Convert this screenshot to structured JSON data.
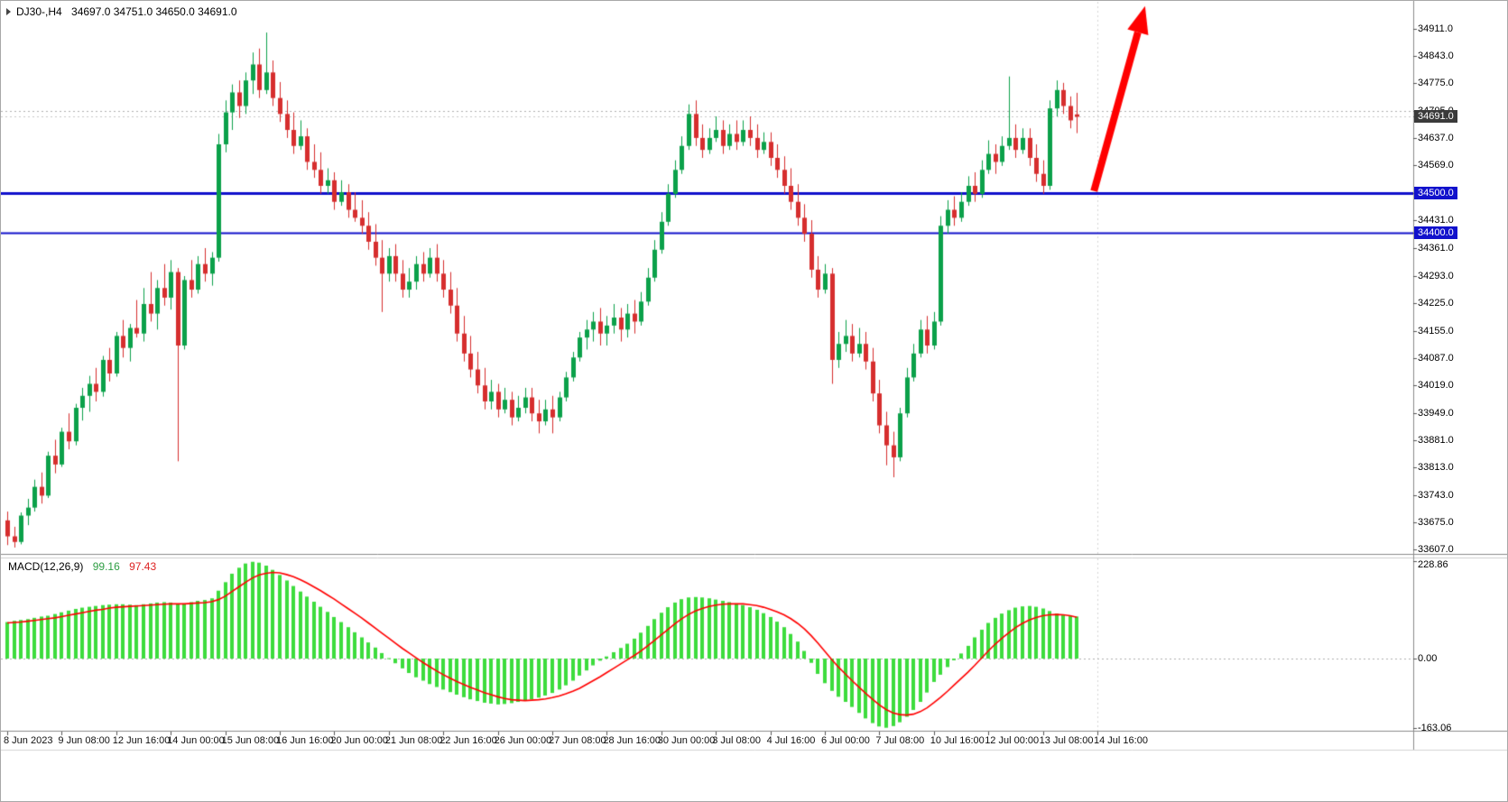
{
  "header": {
    "symbol_period": "DJ30-,H4",
    "ohlc": "34697.0 34751.0 34650.0 34691.0"
  },
  "chart_data": {
    "type": "candlestick",
    "symbol": "DJ30-",
    "timeframe": "H4",
    "current": {
      "open": 34697.0,
      "high": 34751.0,
      "low": 34650.0,
      "close": 34691.0
    },
    "colors": {
      "bull": "#0ba14a",
      "bear": "#d62e2e",
      "hline": "#1111cc",
      "macd_hist": "#3ddc3d",
      "macd_signal": "#ff0000",
      "arrow": "#ff0000",
      "badge_current_bg": "#3a3a3a"
    },
    "price_axis": {
      "ylim": [
        33596,
        34979
      ],
      "ticks": [
        34911,
        34843,
        34775,
        34705,
        34637,
        34569,
        34431,
        34361,
        34293,
        34225,
        34155,
        34087,
        34019,
        33949,
        33881,
        33813,
        33743,
        33675,
        33607
      ]
    },
    "price_badges": [
      {
        "value": 34691.0,
        "kind": "current"
      },
      {
        "value": 34500.0,
        "kind": "level"
      },
      {
        "value": 34400.0,
        "kind": "level"
      }
    ],
    "hlines": [
      {
        "price": 34500,
        "color": "#1111cc",
        "width": 3
      },
      {
        "price": 34400,
        "color": "#1111cc",
        "width": 2
      }
    ],
    "dashed_levels": [
      34705
    ],
    "arrow": {
      "from_index": 159.5,
      "from_price": 34505,
      "to_index": 167,
      "to_price": 34968,
      "color": "#ff0000"
    },
    "candles": [
      [
        33680,
        33702,
        33618,
        33640
      ],
      [
        33640,
        33664,
        33612,
        33626
      ],
      [
        33626,
        33700,
        33620,
        33692
      ],
      [
        33692,
        33734,
        33668,
        33712
      ],
      [
        33712,
        33782,
        33702,
        33764
      ],
      [
        33764,
        33800,
        33722,
        33742
      ],
      [
        33742,
        33852,
        33736,
        33842
      ],
      [
        33842,
        33882,
        33798,
        33820
      ],
      [
        33820,
        33912,
        33814,
        33902
      ],
      [
        33902,
        33948,
        33858,
        33878
      ],
      [
        33878,
        33972,
        33868,
        33962
      ],
      [
        33962,
        34012,
        33930,
        33992
      ],
      [
        33992,
        34042,
        33952,
        34022
      ],
      [
        34022,
        34062,
        33978,
        34002
      ],
      [
        34002,
        34092,
        33990,
        34082
      ],
      [
        34082,
        34112,
        34028,
        34048
      ],
      [
        34048,
        34152,
        34040,
        34142
      ],
      [
        34142,
        34182,
        34088,
        34112
      ],
      [
        34112,
        34172,
        34078,
        34162
      ],
      [
        34162,
        34232,
        34138,
        34148
      ],
      [
        34148,
        34262,
        34128,
        34222
      ],
      [
        34222,
        34302,
        34178,
        34198
      ],
      [
        34198,
        34282,
        34158,
        34262
      ],
      [
        34262,
        34322,
        34218,
        34238
      ],
      [
        34238,
        34332,
        34208,
        34302
      ],
      [
        34302,
        34312,
        33828,
        34118
      ],
      [
        34118,
        34292,
        34108,
        34282
      ],
      [
        34282,
        34332,
        34238,
        34258
      ],
      [
        34258,
        34342,
        34248,
        34322
      ],
      [
        34322,
        34362,
        34278,
        34298
      ],
      [
        34298,
        34352,
        34268,
        34338
      ],
      [
        34338,
        34648,
        34328,
        34622
      ],
      [
        34622,
        34732,
        34602,
        34702
      ],
      [
        34702,
        34772,
        34658,
        34752
      ],
      [
        34752,
        34782,
        34688,
        34718
      ],
      [
        34718,
        34802,
        34698,
        34782
      ],
      [
        34782,
        34852,
        34748,
        34822
      ],
      [
        34822,
        34862,
        34738,
        34758
      ],
      [
        34758,
        34902,
        34748,
        34802
      ],
      [
        34802,
        34832,
        34718,
        34738
      ],
      [
        34738,
        34778,
        34678,
        34698
      ],
      [
        34698,
        34732,
        34638,
        34658
      ],
      [
        34658,
        34702,
        34598,
        34618
      ],
      [
        34618,
        34682,
        34608,
        34642
      ],
      [
        34642,
        34662,
        34558,
        34578
      ],
      [
        34578,
        34622,
        34538,
        34558
      ],
      [
        34558,
        34602,
        34498,
        34518
      ],
      [
        34518,
        34562,
        34498,
        34532
      ],
      [
        34532,
        34552,
        34458,
        34478
      ],
      [
        34478,
        34532,
        34468,
        34502
      ],
      [
        34502,
        34522,
        34438,
        34458
      ],
      [
        34458,
        34502,
        34428,
        34438
      ],
      [
        34438,
        34482,
        34398,
        34418
      ],
      [
        34418,
        34452,
        34358,
        34378
      ],
      [
        34378,
        34422,
        34318,
        34338
      ],
      [
        34338,
        34382,
        34202,
        34298
      ],
      [
        34298,
        34362,
        34278,
        34342
      ],
      [
        34342,
        34372,
        34278,
        34298
      ],
      [
        34298,
        34332,
        34238,
        34258
      ],
      [
        34258,
        34312,
        34238,
        34278
      ],
      [
        34278,
        34342,
        34258,
        34322
      ],
      [
        34322,
        34352,
        34278,
        34298
      ],
      [
        34298,
        34362,
        34288,
        34338
      ],
      [
        34338,
        34372,
        34278,
        34298
      ],
      [
        34298,
        34332,
        34238,
        34258
      ],
      [
        34258,
        34302,
        34198,
        34218
      ],
      [
        34218,
        34262,
        34128,
        34148
      ],
      [
        34148,
        34192,
        34078,
        34098
      ],
      [
        34098,
        34142,
        34038,
        34058
      ],
      [
        34058,
        34102,
        33998,
        34018
      ],
      [
        34018,
        34062,
        33958,
        33978
      ],
      [
        33978,
        34032,
        33958,
        34002
      ],
      [
        34002,
        34022,
        33938,
        33958
      ],
      [
        33958,
        34012,
        33948,
        33982
      ],
      [
        33982,
        34002,
        33918,
        33938
      ],
      [
        33938,
        33992,
        33928,
        33962
      ],
      [
        33962,
        34012,
        33948,
        33988
      ],
      [
        33988,
        34012,
        33928,
        33948
      ],
      [
        33948,
        33982,
        33898,
        33928
      ],
      [
        33928,
        33982,
        33918,
        33958
      ],
      [
        33958,
        33992,
        33898,
        33938
      ],
      [
        33938,
        34002,
        33928,
        33988
      ],
      [
        33988,
        34052,
        33978,
        34038
      ],
      [
        34038,
        34102,
        34028,
        34088
      ],
      [
        34088,
        34152,
        34078,
        34138
      ],
      [
        34138,
        34182,
        34108,
        34158
      ],
      [
        34158,
        34202,
        34128,
        34178
      ],
      [
        34178,
        34212,
        34118,
        34148
      ],
      [
        34148,
        34192,
        34118,
        34168
      ],
      [
        34168,
        34222,
        34148,
        34188
      ],
      [
        34188,
        34212,
        34128,
        34158
      ],
      [
        34158,
        34222,
        34138,
        34198
      ],
      [
        34198,
        34232,
        34148,
        34178
      ],
      [
        34178,
        34252,
        34168,
        34228
      ],
      [
        34228,
        34312,
        34218,
        34288
      ],
      [
        34288,
        34382,
        34278,
        34358
      ],
      [
        34358,
        34452,
        34348,
        34428
      ],
      [
        34428,
        34522,
        34418,
        34498
      ],
      [
        34498,
        34582,
        34488,
        34558
      ],
      [
        34558,
        34642,
        34548,
        34618
      ],
      [
        34618,
        34722,
        34608,
        34698
      ],
      [
        34698,
        34732,
        34618,
        34638
      ],
      [
        34638,
        34672,
        34588,
        34608
      ],
      [
        34608,
        34662,
        34598,
        34638
      ],
      [
        34638,
        34692,
        34628,
        34658
      ],
      [
        34658,
        34682,
        34598,
        34618
      ],
      [
        34618,
        34672,
        34608,
        34648
      ],
      [
        34648,
        34682,
        34608,
        34628
      ],
      [
        34628,
        34682,
        34618,
        34658
      ],
      [
        34658,
        34692,
        34618,
        34638
      ],
      [
        34638,
        34672,
        34588,
        34608
      ],
      [
        34608,
        34652,
        34598,
        34628
      ],
      [
        34628,
        34652,
        34568,
        34588
      ],
      [
        34588,
        34622,
        34538,
        34558
      ],
      [
        34558,
        34592,
        34498,
        34518
      ],
      [
        34518,
        34562,
        34458,
        34478
      ],
      [
        34478,
        34522,
        34418,
        34438
      ],
      [
        34438,
        34472,
        34378,
        34398
      ],
      [
        34398,
        34432,
        34288,
        34308
      ],
      [
        34308,
        34342,
        34238,
        34258
      ],
      [
        34258,
        34322,
        34248,
        34298
      ],
      [
        34298,
        34312,
        34022,
        34082
      ],
      [
        34082,
        34152,
        34062,
        34122
      ],
      [
        34122,
        34182,
        34102,
        34142
      ],
      [
        34142,
        34172,
        34078,
        34098
      ],
      [
        34098,
        34162,
        34088,
        34122
      ],
      [
        34122,
        34152,
        34058,
        34078
      ],
      [
        34078,
        34112,
        33978,
        33998
      ],
      [
        33998,
        34032,
        33898,
        33918
      ],
      [
        33918,
        33952,
        33818,
        33868
      ],
      [
        33868,
        33902,
        33788,
        33838
      ],
      [
        33838,
        33962,
        33828,
        33948
      ],
      [
        33948,
        34062,
        33938,
        34038
      ],
      [
        34038,
        34122,
        34028,
        34098
      ],
      [
        34098,
        34182,
        34088,
        34158
      ],
      [
        34158,
        34192,
        34098,
        34118
      ],
      [
        34118,
        34202,
        34108,
        34178
      ],
      [
        34178,
        34442,
        34168,
        34418
      ],
      [
        34418,
        34482,
        34398,
        34458
      ],
      [
        34458,
        34492,
        34418,
        34438
      ],
      [
        34438,
        34502,
        34428,
        34478
      ],
      [
        34478,
        34542,
        34468,
        34518
      ],
      [
        34518,
        34552,
        34478,
        34498
      ],
      [
        34498,
        34582,
        34488,
        34558
      ],
      [
        34558,
        34632,
        34548,
        34598
      ],
      [
        34598,
        34622,
        34548,
        34578
      ],
      [
        34578,
        34642,
        34568,
        34618
      ],
      [
        34618,
        34792,
        34608,
        34638
      ],
      [
        34638,
        34672,
        34588,
        34608
      ],
      [
        34608,
        34662,
        34598,
        34638
      ],
      [
        34638,
        34662,
        34568,
        34588
      ],
      [
        34588,
        34622,
        34528,
        34548
      ],
      [
        34548,
        34582,
        34498,
        34518
      ],
      [
        34518,
        34732,
        34508,
        34712
      ],
      [
        34712,
        34782,
        34692,
        34758
      ],
      [
        34758,
        34776,
        34698,
        34718
      ],
      [
        34718,
        34742,
        34662,
        34682
      ],
      [
        34697,
        34751,
        34650,
        34691
      ]
    ],
    "macd": {
      "label": "MACD(12,26,9)",
      "macd_value": "99.16",
      "signal_value": "97.43",
      "ticks": [
        228.86,
        0,
        -163.06
      ],
      "ylim": [
        -170,
        236
      ],
      "histogram": [
        86,
        89,
        91,
        93,
        96,
        99,
        101,
        105,
        109,
        113,
        117,
        120,
        122,
        124,
        126,
        127,
        128,
        128,
        127,
        126,
        128,
        130,
        132,
        133,
        132,
        128,
        130,
        133,
        136,
        138,
        142,
        160,
        180,
        200,
        214,
        224,
        228,
        226,
        219,
        209,
        197,
        184,
        171,
        158,
        146,
        134,
        122,
        110,
        98,
        86,
        74,
        62,
        50,
        38,
        26,
        13,
        1,
        -11,
        -23,
        -34,
        -44,
        -52,
        -60,
        -67,
        -73,
        -79,
        -85,
        -91,
        -96,
        -100,
        -104,
        -106,
        -108,
        -107,
        -105,
        -102,
        -99,
        -96,
        -92,
        -87,
        -81,
        -73,
        -63,
        -52,
        -40,
        -28,
        -16,
        -5,
        5,
        15,
        25,
        35,
        47,
        61,
        77,
        93,
        108,
        121,
        132,
        140,
        144,
        145,
        144,
        142,
        139,
        136,
        133,
        130,
        126,
        121,
        115,
        107,
        98,
        87,
        74,
        58,
        40,
        18,
        -10,
        -36,
        -58,
        -76,
        -90,
        -102,
        -114,
        -128,
        -141,
        -152,
        -160,
        -163,
        -159,
        -150,
        -137,
        -121,
        -102,
        -80,
        -55,
        -38,
        -20,
        -4,
        12,
        30,
        50,
        68,
        84,
        96,
        106,
        114,
        120,
        123,
        124,
        122,
        118,
        112,
        106,
        102,
        100,
        99.16
      ],
      "signal": [
        84,
        85,
        86,
        88,
        90,
        92,
        94,
        96,
        99,
        102,
        105,
        108,
        111,
        114,
        116,
        119,
        121,
        122,
        123,
        124,
        125,
        126,
        127,
        128,
        129,
        129,
        129,
        130,
        131,
        132,
        134,
        139,
        147,
        158,
        169,
        180,
        190,
        197,
        201,
        203,
        202,
        198,
        193,
        186,
        178,
        169,
        160,
        150,
        140,
        129,
        118,
        107,
        96,
        84,
        72,
        60,
        48,
        36,
        24,
        13,
        2,
        -9,
        -19,
        -29,
        -38,
        -46,
        -54,
        -61,
        -68,
        -74,
        -80,
        -85,
        -90,
        -94,
        -97,
        -98,
        -99,
        -98,
        -97,
        -95,
        -92,
        -88,
        -83,
        -77,
        -70,
        -61,
        -52,
        -43,
        -33,
        -23,
        -13,
        -3,
        7,
        18,
        30,
        43,
        56,
        69,
        82,
        94,
        104,
        112,
        118,
        123,
        126,
        128,
        129,
        129,
        129,
        127,
        125,
        121,
        116,
        110,
        103,
        94,
        83,
        70,
        54,
        36,
        17,
        -2,
        -20,
        -36,
        -52,
        -67,
        -82,
        -96,
        -109,
        -120,
        -128,
        -132,
        -133,
        -131,
        -125,
        -116,
        -104,
        -91,
        -77,
        -62,
        -47,
        -32,
        -16,
        1,
        18,
        34,
        48,
        61,
        73,
        83,
        91,
        97,
        101,
        103,
        104,
        103,
        101,
        97.43
      ]
    },
    "time_axis": {
      "step": 8,
      "labels": [
        "8 Jun 2023",
        "9 Jun 08:00",
        "12 Jun 16:00",
        "14 Jun 00:00",
        "15 Jun 08:00",
        "16 Jun 16:00",
        "20 Jun 00:00",
        "21 Jun 08:00",
        "22 Jun 16:00",
        "26 Jun 00:00",
        "27 Jun 08:00",
        "28 Jun 16:00",
        "30 Jun 00:00",
        "3 Jul 08:00",
        "4 Jul 16:00",
        "6 Jul 00:00",
        "7 Jul 08:00",
        "10 Jul 16:00",
        "12 Jul 00:00",
        "13 Jul 08:00",
        "14 Jul 16:00"
      ]
    }
  }
}
